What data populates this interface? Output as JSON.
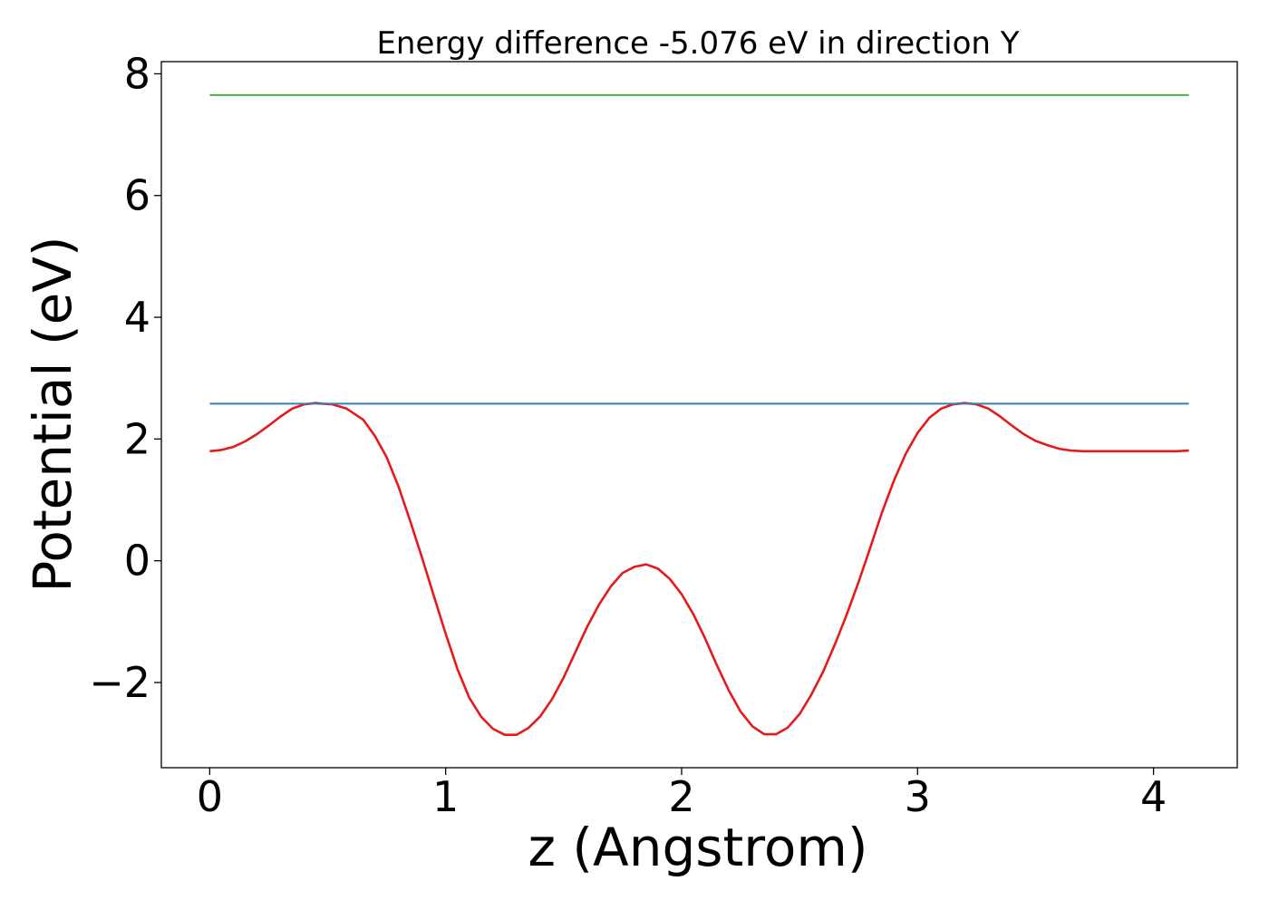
{
  "chart_data": {
    "type": "line",
    "title": "Energy difference -5.076 eV in direction Y",
    "xlabel": "z (Angstrom)",
    "ylabel": "Potential (eV)",
    "xlim": [
      -0.205,
      4.355
    ],
    "ylim": [
      -3.4,
      8.2
    ],
    "x_ticks": [
      0,
      1,
      2,
      3,
      4
    ],
    "x_tick_labels": [
      "0",
      "1",
      "2",
      "3",
      "4"
    ],
    "y_ticks": [
      -2,
      0,
      2,
      4,
      6,
      8
    ],
    "y_tick_labels": [
      "−2",
      "0",
      "2",
      "4",
      "6",
      "8"
    ],
    "grid": false,
    "legend": "none",
    "series": [
      {
        "color": "#e41a1c",
        "x": [
          0.0,
          0.05,
          0.1,
          0.15,
          0.2,
          0.25,
          0.3,
          0.35,
          0.4,
          0.45,
          0.48,
          0.52,
          0.58,
          0.65,
          0.7,
          0.75,
          0.8,
          0.85,
          0.9,
          0.95,
          1.0,
          1.05,
          1.1,
          1.15,
          1.2,
          1.25,
          1.3,
          1.35,
          1.4,
          1.45,
          1.5,
          1.55,
          1.6,
          1.65,
          1.7,
          1.75,
          1.8,
          1.85,
          1.9,
          1.95,
          2.0,
          2.05,
          2.1,
          2.15,
          2.2,
          2.25,
          2.3,
          2.35,
          2.4,
          2.45,
          2.5,
          2.55,
          2.6,
          2.65,
          2.7,
          2.75,
          2.8,
          2.85,
          2.9,
          2.95,
          3.0,
          3.05,
          3.1,
          3.15,
          3.2,
          3.25,
          3.3,
          3.35,
          3.4,
          3.45,
          3.5,
          3.55,
          3.6,
          3.65,
          3.7,
          3.75,
          3.8,
          3.85,
          3.9,
          3.95,
          4.0,
          4.05,
          4.1,
          4.15
        ],
        "y": [
          1.8,
          1.82,
          1.87,
          1.96,
          2.08,
          2.22,
          2.37,
          2.5,
          2.57,
          2.59,
          2.58,
          2.57,
          2.5,
          2.32,
          2.05,
          1.7,
          1.22,
          0.65,
          0.05,
          -0.58,
          -1.2,
          -1.78,
          -2.25,
          -2.56,
          -2.76,
          -2.86,
          -2.86,
          -2.75,
          -2.56,
          -2.28,
          -1.92,
          -1.5,
          -1.08,
          -0.72,
          -0.42,
          -0.2,
          -0.1,
          -0.06,
          -0.13,
          -0.3,
          -0.55,
          -0.88,
          -1.28,
          -1.72,
          -2.13,
          -2.48,
          -2.72,
          -2.85,
          -2.85,
          -2.74,
          -2.52,
          -2.2,
          -1.82,
          -1.37,
          -0.88,
          -0.35,
          0.22,
          0.8,
          1.32,
          1.76,
          2.1,
          2.35,
          2.5,
          2.57,
          2.59,
          2.57,
          2.5,
          2.37,
          2.22,
          2.08,
          1.97,
          1.9,
          1.84,
          1.81,
          1.8,
          1.8,
          1.8,
          1.8,
          1.8,
          1.8,
          1.8,
          1.8,
          1.8,
          1.81
        ]
      },
      {
        "color": "#377eb8",
        "x": [
          0.0,
          4.15
        ],
        "y": [
          2.58,
          2.58
        ]
      },
      {
        "color": "#4daf4a",
        "x": [
          0.0,
          4.15
        ],
        "y": [
          7.65,
          7.65
        ]
      }
    ]
  }
}
